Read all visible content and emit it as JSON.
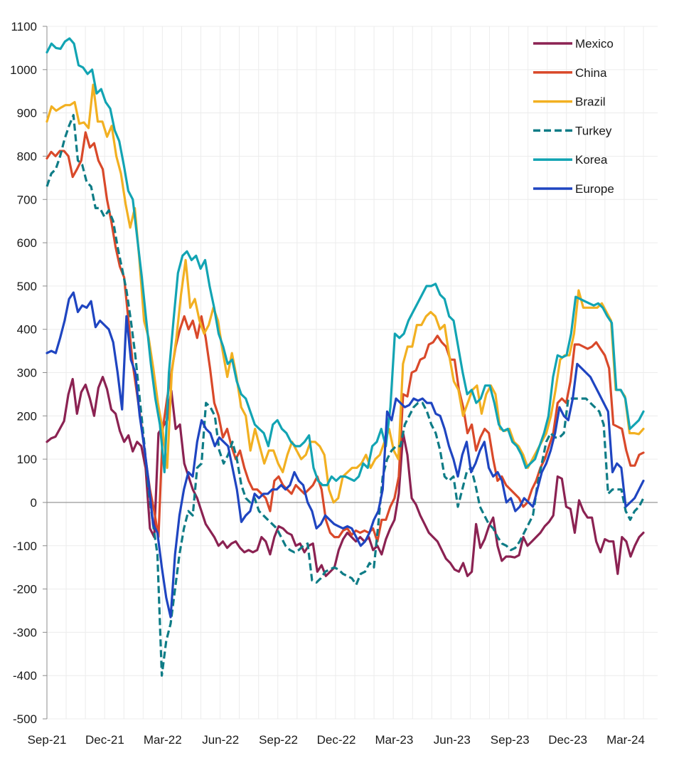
{
  "chart_data": {
    "type": "line",
    "title": "",
    "xlabel": "",
    "ylabel": "",
    "ylim": [
      -500,
      1100
    ],
    "y_ticks": [
      1100,
      1000,
      900,
      800,
      700,
      600,
      500,
      400,
      300,
      200,
      100,
      0,
      -100,
      -200,
      -300,
      -400,
      -500
    ],
    "x_tick_labels": [
      "Sep-21",
      "Dec-21",
      "Mar-22",
      "Jun-22",
      "Sep-22",
      "Dec-22",
      "Mar-23",
      "Jun-23",
      "Sep-23",
      "Dec-23",
      "Mar-24"
    ],
    "x_frequency": "weekly",
    "x_start": "Sep-21",
    "x_end": "Mar-24",
    "grid": true,
    "legend_position": "top-right",
    "series": [
      {
        "name": "Mexico",
        "color": "#8B2252",
        "dash": false,
        "values": [
          140,
          148,
          152,
          170,
          188,
          250,
          285,
          205,
          255,
          272,
          240,
          200,
          265,
          290,
          262,
          215,
          205,
          165,
          140,
          155,
          118,
          140,
          130,
          80,
          -60,
          -80,
          160,
          175,
          190,
          258,
          170,
          180,
          90,
          60,
          30,
          10,
          -20,
          -50,
          -65,
          -80,
          -100,
          -90,
          -105,
          -95,
          -90,
          -105,
          -115,
          -110,
          -115,
          -110,
          -80,
          -90,
          -120,
          -80,
          -55,
          -60,
          -70,
          -75,
          -100,
          -95,
          -115,
          -100,
          -95,
          -160,
          -145,
          -170,
          -160,
          -150,
          -110,
          -85,
          -70,
          -80,
          -90,
          -80,
          -90,
          -80,
          -110,
          -100,
          -120,
          -85,
          -60,
          -40,
          20,
          160,
          110,
          10,
          -5,
          -30,
          -50,
          -70,
          -80,
          -90,
          -110,
          -130,
          -140,
          -155,
          -160,
          -140,
          -170,
          -160,
          -50,
          -105,
          -85,
          -55,
          -35,
          -100,
          -135,
          -125,
          -125,
          -127,
          -122,
          -80,
          -100,
          -90,
          -80,
          -70,
          -55,
          -45,
          -30,
          60,
          55,
          -10,
          -15,
          -70,
          5,
          -20,
          -35,
          -35,
          -90,
          -115,
          -85,
          -90,
          -90,
          -165,
          -80,
          -90,
          -125,
          -100,
          -80,
          -70
        ]
      },
      {
        "name": "China",
        "color": "#D9492A",
        "dash": false,
        "values": [
          795,
          810,
          800,
          812,
          812,
          800,
          752,
          770,
          790,
          855,
          820,
          830,
          790,
          770,
          700,
          650,
          590,
          545,
          520,
          420,
          320,
          250,
          180,
          100,
          30,
          -20,
          -80,
          170,
          240,
          300,
          360,
          400,
          430,
          400,
          420,
          380,
          430,
          380,
          310,
          230,
          200,
          150,
          170,
          130,
          100,
          120,
          80,
          50,
          30,
          30,
          20,
          10,
          -20,
          50,
          60,
          40,
          30,
          20,
          40,
          30,
          20,
          30,
          40,
          60,
          30,
          -40,
          -70,
          -80,
          -80,
          -65,
          -60,
          -75,
          -65,
          -70,
          -65,
          -70,
          -60,
          -90,
          -40,
          -40,
          -10,
          10,
          60,
          250,
          245,
          300,
          305,
          330,
          335,
          365,
          370,
          385,
          370,
          360,
          330,
          330,
          260,
          220,
          160,
          180,
          120,
          150,
          170,
          160,
          100,
          50,
          60,
          40,
          30,
          20,
          10,
          -10,
          0,
          30,
          50,
          80,
          100,
          130,
          160,
          230,
          240,
          230,
          280,
          365,
          365,
          360,
          355,
          360,
          370,
          355,
          340,
          310,
          180,
          175,
          170,
          120,
          85,
          85,
          110,
          115
        ]
      },
      {
        "name": "Brazil",
        "color": "#F2B021",
        "dash": false,
        "values": [
          880,
          915,
          905,
          912,
          918,
          918,
          925,
          875,
          878,
          865,
          965,
          880,
          880,
          845,
          870,
          800,
          760,
          690,
          635,
          680,
          560,
          420,
          380,
          310,
          230,
          170,
          80,
          300,
          380,
          480,
          560,
          450,
          470,
          420,
          390,
          410,
          450,
          420,
          350,
          290,
          345,
          290,
          220,
          200,
          120,
          170,
          130,
          90,
          120,
          120,
          90,
          70,
          110,
          140,
          120,
          100,
          110,
          140,
          140,
          130,
          110,
          30,
          0,
          10,
          60,
          70,
          80,
          80,
          90,
          110,
          80,
          100,
          110,
          140,
          170,
          120,
          100,
          320,
          360,
          360,
          410,
          410,
          430,
          440,
          430,
          400,
          410,
          340,
          280,
          260,
          200,
          230,
          260,
          270,
          205,
          250,
          270,
          250,
          170,
          165,
          170,
          140,
          130,
          110,
          80,
          100,
          120,
          140,
          160,
          200,
          260,
          330,
          340,
          340,
          390,
          490,
          450,
          450,
          450,
          450,
          460,
          440,
          420,
          260,
          260,
          245,
          160,
          160,
          158,
          170
        ]
      },
      {
        "name": "Turkey",
        "color": "#0E7C86",
        "dash": true,
        "values": [
          730,
          760,
          770,
          800,
          840,
          870,
          895,
          790,
          780,
          740,
          730,
          680,
          680,
          660,
          675,
          650,
          590,
          540,
          490,
          420,
          340,
          240,
          140,
          30,
          -50,
          -120,
          -400,
          -320,
          -280,
          -200,
          -120,
          -60,
          -20,
          -30,
          80,
          90,
          230,
          220,
          200,
          120,
          90,
          110,
          140,
          100,
          40,
          10,
          0,
          10,
          -20,
          -30,
          -40,
          -50,
          -60,
          -80,
          -100,
          -110,
          -115,
          -110,
          -100,
          -95,
          -180,
          -185,
          -175,
          -160,
          -155,
          -150,
          -155,
          -165,
          -170,
          -175,
          -190,
          -165,
          -160,
          -140,
          -150,
          -50,
          60,
          100,
          120,
          130,
          130,
          180,
          200,
          220,
          230,
          230,
          210,
          180,
          160,
          120,
          60,
          50,
          60,
          -10,
          30,
          70,
          80,
          40,
          -10,
          -30,
          -50,
          -60,
          -80,
          -95,
          -100,
          -110,
          -105,
          -90,
          -70,
          -50,
          -30,
          40,
          90,
          140,
          160,
          150,
          150,
          160,
          240,
          240,
          240,
          240,
          240,
          230,
          220,
          210,
          180,
          20,
          30,
          30,
          30,
          -20,
          -40,
          -20,
          -10,
          10
        ]
      },
      {
        "name": "Korea",
        "color": "#12A4B3",
        "dash": false,
        "values": [
          1040,
          1060,
          1050,
          1048,
          1065,
          1072,
          1060,
          1010,
          1005,
          990,
          1000,
          945,
          955,
          925,
          910,
          860,
          835,
          780,
          720,
          700,
          610,
          520,
          420,
          320,
          240,
          180,
          70,
          300,
          420,
          530,
          570,
          580,
          560,
          570,
          540,
          560,
          500,
          450,
          390,
          360,
          320,
          330,
          280,
          250,
          240,
          210,
          180,
          170,
          160,
          130,
          180,
          190,
          170,
          160,
          140,
          130,
          130,
          140,
          155,
          80,
          50,
          40,
          40,
          60,
          50,
          60,
          60,
          55,
          50,
          60,
          90,
          80,
          130,
          140,
          170,
          130,
          220,
          390,
          380,
          390,
          420,
          440,
          460,
          480,
          500,
          500,
          505,
          480,
          470,
          430,
          420,
          360,
          300,
          250,
          260,
          230,
          240,
          270,
          270,
          230,
          180,
          165,
          170,
          140,
          130,
          110,
          80,
          90,
          100,
          130,
          160,
          200,
          290,
          340,
          335,
          340,
          390,
          475,
          470,
          465,
          460,
          455,
          460,
          450,
          430,
          415,
          260,
          260,
          240,
          170,
          180,
          190,
          210
        ]
      },
      {
        "name": "Europe",
        "color": "#1F45C1",
        "dash": false,
        "values": [
          345,
          350,
          345,
          380,
          420,
          470,
          485,
          440,
          455,
          450,
          465,
          405,
          420,
          410,
          400,
          370,
          300,
          215,
          430,
          330,
          300,
          200,
          130,
          50,
          -50,
          -70,
          -150,
          -220,
          -265,
          -120,
          -30,
          30,
          70,
          60,
          140,
          190,
          170,
          160,
          130,
          150,
          140,
          130,
          80,
          30,
          -45,
          -30,
          -20,
          20,
          10,
          20,
          20,
          30,
          30,
          40,
          30,
          40,
          70,
          50,
          40,
          0,
          -20,
          -60,
          -50,
          -30,
          -40,
          -50,
          -55,
          -60,
          -55,
          -60,
          -80,
          -100,
          -90,
          -70,
          -40,
          -20,
          30,
          210,
          190,
          240,
          230,
          220,
          225,
          240,
          235,
          240,
          230,
          230,
          205,
          200,
          170,
          130,
          100,
          60,
          110,
          140,
          70,
          90,
          120,
          140,
          80,
          60,
          70,
          50,
          0,
          10,
          -20,
          -10,
          10,
          0,
          -10,
          30,
          70,
          90,
          120,
          160,
          220,
          200,
          190,
          240,
          320,
          310,
          300,
          290,
          270,
          250,
          230,
          210,
          70,
          90,
          80,
          -10,
          0,
          10,
          30,
          50
        ]
      }
    ]
  }
}
